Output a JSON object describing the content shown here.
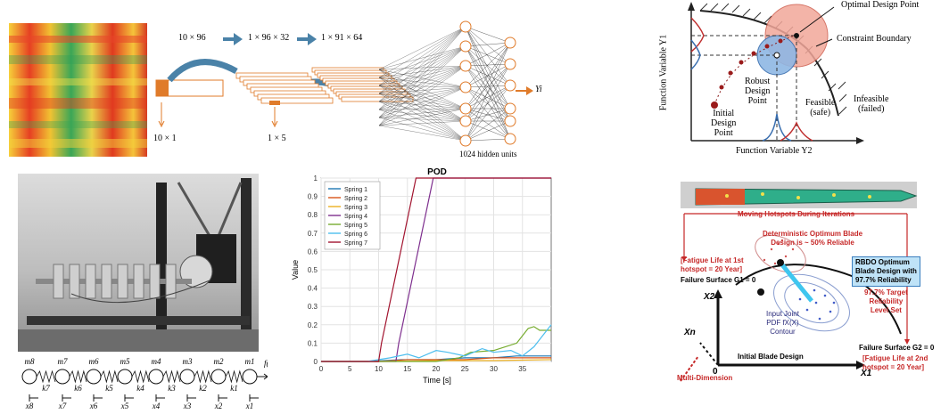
{
  "cnn": {
    "shape_in": "10 × 96",
    "shape_1": "1 × 96 × 32",
    "shape_2": "1 × 91 × 64",
    "shape_vec": "10 × 1",
    "shape_kernel": "1 × 5",
    "hidden_units": "1024 hidden units",
    "output": "Yi"
  },
  "rbdo": {
    "optimal": "Optimal Design Point",
    "constraint": "Constraint Boundary",
    "robust": [
      "Robust",
      "Design",
      "Point"
    ],
    "initial": [
      "Initial",
      "Design",
      "Point"
    ],
    "feasible": [
      "Feasible",
      "(safe)"
    ],
    "infeasible": [
      "Infeasible",
      "(failed)"
    ],
    "ylabel": "Function Variable Y1",
    "xlabel": "Function Variable Y2"
  },
  "springs": {
    "masses": [
      "m8",
      "m7",
      "m6",
      "m5",
      "m4",
      "m3",
      "m2",
      "m1"
    ],
    "constants": [
      "k7",
      "k6",
      "k5",
      "k4",
      "k3",
      "k2",
      "k1"
    ],
    "positions": [
      "x8",
      "x7",
      "x6",
      "x5",
      "x4",
      "x3",
      "x2",
      "x1"
    ],
    "force": "f(t)"
  },
  "chart_data": {
    "type": "line",
    "title": "POD",
    "xlabel": "Time [s]",
    "ylabel": "Value",
    "xlim": [
      0,
      40
    ],
    "ylim": [
      0,
      1
    ],
    "xticks": [
      "0",
      "5",
      "10",
      "15",
      "20",
      "25",
      "30",
      "35"
    ],
    "yticks": [
      "0",
      "0.1",
      "0.2",
      "0.3",
      "0.4",
      "0.5",
      "0.6",
      "0.7",
      "0.8",
      "0.9",
      "1"
    ],
    "legend_position": "top-left",
    "series": [
      {
        "name": "Spring 1",
        "color": "#1f77b4",
        "x": [
          0,
          8,
          14,
          20,
          25,
          30,
          34,
          38,
          40
        ],
        "y": [
          0,
          0,
          0.01,
          0.01,
          0.02,
          0.02,
          0.03,
          0.03,
          0.03
        ]
      },
      {
        "name": "Spring 2",
        "color": "#d95319",
        "x": [
          0,
          10,
          15,
          20,
          25,
          30,
          35,
          40
        ],
        "y": [
          0,
          0,
          0.01,
          0.01,
          0.01,
          0.02,
          0.02,
          0.02
        ]
      },
      {
        "name": "Spring 3",
        "color": "#edb120",
        "x": [
          0,
          10,
          20,
          30,
          40
        ],
        "y": [
          0,
          0,
          0.005,
          0.005,
          0.01
        ]
      },
      {
        "name": "Spring 4",
        "color": "#7e2f8e",
        "x": [
          0,
          13,
          13.5,
          19.5,
          40
        ],
        "y": [
          0,
          0,
          0.1,
          1,
          1
        ]
      },
      {
        "name": "Spring 5",
        "color": "#77ac30",
        "x": [
          0,
          20,
          24,
          26,
          30,
          32,
          34,
          35,
          36,
          37,
          38,
          40
        ],
        "y": [
          0,
          0,
          0.02,
          0.05,
          0.06,
          0.08,
          0.1,
          0.14,
          0.18,
          0.19,
          0.17,
          0.17
        ]
      },
      {
        "name": "Spring 6",
        "color": "#4dbeee",
        "x": [
          0,
          8,
          12,
          15,
          17,
          20,
          22,
          25,
          28,
          30,
          33,
          35,
          37,
          38,
          40
        ],
        "y": [
          0,
          0,
          0.02,
          0.04,
          0.02,
          0.06,
          0.05,
          0.03,
          0.07,
          0.05,
          0.06,
          0.03,
          0.08,
          0.12,
          0.2
        ]
      },
      {
        "name": "Spring 7",
        "color": "#a2142f",
        "x": [
          0,
          10,
          10.5,
          16.5,
          40
        ],
        "y": [
          0,
          0,
          0.1,
          1,
          1
        ]
      }
    ]
  },
  "blade": {
    "moving": "Moving Hotspots During Iterations",
    "deterministic": [
      "Deterministic Optimum Blade",
      "Design is ~ 50% Reliable"
    ],
    "fatigue1": [
      "[Fatigue Life at 1st",
      "hotspot = 20 Year]"
    ],
    "surface1": "Failure Surface G1 = 0",
    "rbdo_box": [
      "RBDO Optimum",
      "Blade Design with",
      "97.7% Reliability"
    ],
    "target": [
      "97.7% Target",
      "Reliability",
      "Level Set"
    ],
    "x2": "X2",
    "xn": "Xn",
    "x1": "X1",
    "origin": "0",
    "pdf": [
      "Input Joint",
      "PDF fX(X)",
      "Contour"
    ],
    "multi": "Multi-Dimension",
    "initial": "Initial Blade Design",
    "surface2": "Failure Surface G2 = 0",
    "fatigue2": [
      "[Fatigue Life at 2nd",
      "hotspot = 20 Year]"
    ]
  }
}
